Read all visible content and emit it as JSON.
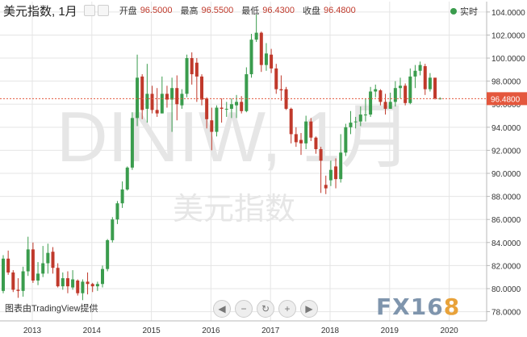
{
  "header": {
    "title": "美元指数, 1月",
    "open_label": "开盘",
    "open_value": "96.5000",
    "high_label": "最高",
    "high_value": "96.5500",
    "low_label": "最低",
    "low_value": "96.4300",
    "close_label": "收盘",
    "close_value": "96.4800",
    "live_label": "实时"
  },
  "watermark": {
    "symbol": "DINIW, 1月",
    "name": "美元指数"
  },
  "credit": "图表由TradingView提供",
  "logo": {
    "text": "FX16",
    "accent": "8"
  },
  "nav_icons": [
    "arrow-left-icon",
    "zoom-out-icon",
    "reset-icon",
    "zoom-in-icon",
    "arrow-right-icon"
  ],
  "colors": {
    "up": "#3a9c4d",
    "down": "#c0392b",
    "price_tag": "#e4573d",
    "grid": "#e5e5e5"
  },
  "chart_data": {
    "type": "candlestick",
    "title": "美元指数, 1月",
    "interval": "1月",
    "ylim": [
      77.2,
      104.9
    ],
    "yticks": [
      "78.0000",
      "80.0000",
      "82.0000",
      "84.0000",
      "86.0000",
      "88.0000",
      "90.0000",
      "92.0000",
      "94.0000",
      "96.0000",
      "98.0000",
      "100.0000",
      "102.0000",
      "104.0000"
    ],
    "xticks": [
      "2013",
      "2014",
      "2015",
      "2016",
      "2017",
      "2018",
      "2019",
      "2020"
    ],
    "last_price": "96.4800",
    "candles": [
      [
        79.8,
        82.6,
        79.6,
        82.9
      ],
      [
        82.6,
        81.4,
        81.2,
        83.3
      ],
      [
        81.4,
        79.9,
        79.7,
        81.6
      ],
      [
        79.9,
        79.8,
        79.2,
        80.9
      ],
      [
        79.8,
        81.5,
        79.3,
        81.9
      ],
      [
        81.5,
        83.4,
        81.1,
        84.5
      ],
      [
        83.4,
        80.7,
        80.5,
        84.0
      ],
      [
        80.7,
        81.3,
        80.3,
        82.3
      ],
      [
        81.3,
        82.2,
        81.0,
        83.7
      ],
      [
        82.2,
        83.1,
        81.3,
        83.9
      ],
      [
        83.2,
        81.8,
        81.3,
        83.6
      ],
      [
        81.8,
        80.2,
        80.1,
        82.2
      ],
      [
        80.2,
        80.9,
        79.9,
        81.4
      ],
      [
        80.9,
        80.2,
        79.6,
        81.5
      ],
      [
        80.1,
        80.8,
        79.9,
        81.6
      ],
      [
        80.7,
        79.6,
        79.4,
        80.8
      ],
      [
        79.6,
        80.6,
        79.0,
        80.8
      ],
      [
        80.6,
        80.4,
        79.5,
        81.4
      ],
      [
        80.4,
        80.2,
        79.7,
        80.5
      ],
      [
        80.2,
        80.4,
        79.8,
        80.6
      ],
      [
        80.4,
        81.7,
        80.1,
        82.0
      ],
      [
        81.7,
        84.2,
        81.5,
        84.3
      ],
      [
        84.2,
        86.0,
        84.0,
        86.2
      ],
      [
        86.0,
        87.4,
        85.6,
        87.6
      ],
      [
        87.4,
        88.6,
        87.0,
        89.3
      ],
      [
        88.6,
        90.5,
        88.5,
        90.6
      ],
      [
        90.5,
        94.8,
        90.3,
        95.3
      ],
      [
        94.8,
        98.3,
        94.1,
        100.3
      ],
      [
        98.4,
        95.5,
        94.7,
        98.6
      ],
      [
        95.6,
        96.9,
        94.4,
        99.5
      ],
      [
        96.9,
        95.5,
        95.2,
        97.6
      ],
      [
        95.5,
        95.2,
        94.9,
        97.4
      ],
      [
        95.2,
        96.9,
        95.2,
        98.4
      ],
      [
        96.9,
        96.4,
        95.7,
        97.6
      ],
      [
        96.4,
        97.4,
        93.6,
        98.3
      ],
      [
        97.4,
        96.0,
        94.6,
        98.5
      ],
      [
        95.9,
        96.9,
        95.6,
        97.3
      ],
      [
        96.9,
        100.0,
        96.6,
        100.3
      ],
      [
        100.0,
        98.6,
        97.7,
        100.5
      ],
      [
        99.6,
        98.4,
        96.2,
        100.0
      ],
      [
        98.4,
        96.4,
        95.9,
        98.6
      ],
      [
        96.5,
        94.7,
        93.9,
        96.6
      ],
      [
        94.6,
        93.6,
        92.0,
        95.7
      ],
      [
        93.6,
        95.7,
        93.2,
        95.9
      ],
      [
        95.7,
        95.6,
        94.4,
        96.5
      ],
      [
        95.6,
        95.6,
        94.9,
        96.2
      ],
      [
        95.6,
        96.0,
        94.8,
        96.5
      ],
      [
        95.9,
        96.2,
        94.8,
        96.8
      ],
      [
        96.2,
        95.4,
        95.2,
        96.7
      ],
      [
        95.4,
        98.6,
        95.3,
        99.2
      ],
      [
        98.6,
        101.6,
        98.3,
        102.1
      ],
      [
        101.6,
        102.2,
        101.4,
        103.8
      ],
      [
        102.2,
        99.4,
        98.8,
        102.3
      ],
      [
        99.4,
        100.4,
        98.9,
        101.3
      ],
      [
        100.3,
        99.1,
        98.7,
        100.8
      ],
      [
        99.1,
        97.3,
        96.9,
        99.5
      ],
      [
        97.3,
        97.2,
        96.3,
        98.5
      ],
      [
        97.3,
        95.6,
        95.5,
        97.5
      ],
      [
        95.6,
        93.4,
        92.6,
        95.7
      ],
      [
        93.4,
        92.7,
        92.3,
        94.0
      ],
      [
        92.9,
        92.6,
        91.6,
        93.5
      ],
      [
        92.6,
        94.5,
        92.1,
        95.0
      ],
      [
        94.5,
        93.1,
        92.8,
        94.8
      ],
      [
        93.1,
        92.1,
        91.7,
        93.2
      ],
      [
        92.1,
        91.1,
        88.3,
        92.3
      ],
      [
        89.0,
        88.7,
        88.2,
        89.8
      ],
      [
        89.4,
        90.3,
        88.9,
        91.1
      ],
      [
        90.6,
        89.5,
        88.7,
        91.3
      ],
      [
        89.5,
        91.8,
        89.2,
        93.4
      ],
      [
        91.8,
        94.0,
        91.5,
        94.3
      ],
      [
        94.0,
        94.4,
        93.4,
        95.4
      ],
      [
        94.5,
        94.5,
        93.9,
        94.9
      ],
      [
        94.5,
        95.1,
        94.1,
        95.8
      ],
      [
        95.1,
        95.1,
        94.5,
        96.5
      ],
      [
        95.1,
        97.1,
        94.9,
        97.5
      ],
      [
        97.1,
        97.3,
        96.6,
        97.7
      ],
      [
        97.2,
        96.2,
        95.9,
        97.3
      ],
      [
        96.2,
        95.6,
        95.1,
        96.9
      ],
      [
        95.6,
        96.2,
        95.6,
        97.0
      ],
      [
        96.2,
        97.4,
        95.8,
        98.0
      ],
      [
        97.4,
        97.6,
        96.5,
        98.3
      ],
      [
        97.6,
        96.1,
        95.9,
        97.8
      ],
      [
        96.1,
        98.4,
        96.0,
        99.1
      ],
      [
        98.4,
        98.9,
        97.4,
        99.4
      ],
      [
        98.9,
        99.4,
        98.5,
        99.7
      ],
      [
        99.3,
        97.3,
        96.8,
        99.5
      ],
      [
        97.3,
        98.3,
        97.1,
        98.7
      ],
      [
        98.3,
        96.5,
        96.4,
        98.2
      ],
      [
        96.5,
        96.5,
        96.4,
        96.6
      ]
    ]
  }
}
